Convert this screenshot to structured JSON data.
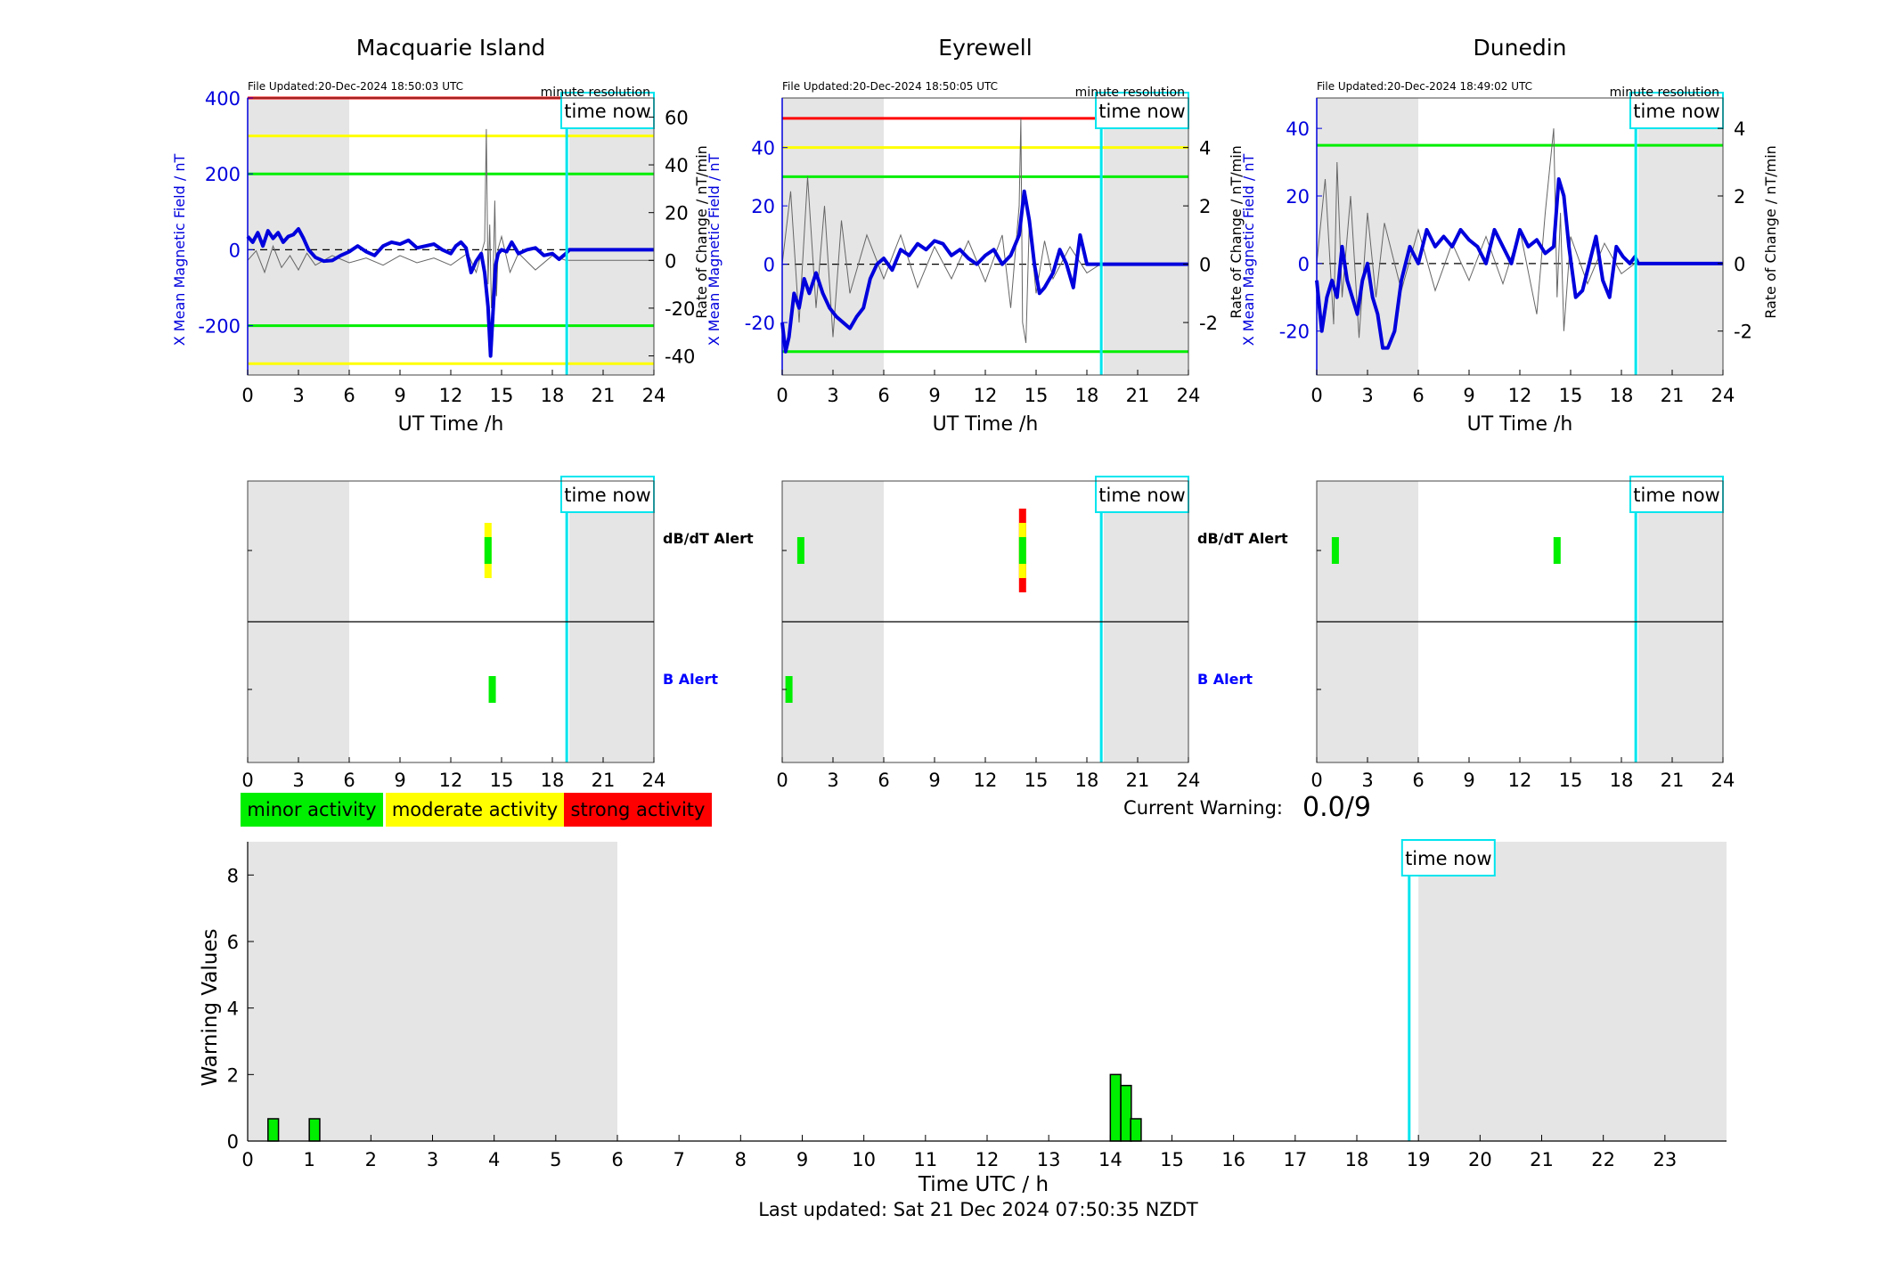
{
  "figure": {
    "last_updated": "Last updated: Sat 21 Dec 2024 07:50:35 NZDT",
    "current_warning_label": "Current Warning:",
    "current_warning_value": "0.0/9",
    "time_now_label": "time now",
    "legend": [
      {
        "label": "minor activity",
        "color": "#00ee00"
      },
      {
        "label": "moderate activity",
        "color": "#ffff00"
      },
      {
        "label": "strong activity",
        "color": "#ff0000"
      }
    ],
    "colors": {
      "field_line": "#0000dd",
      "rate_line": "#666666",
      "time_now": "#00e5ee",
      "night_shade": "#e5e5e5",
      "threshold_red": "#ff0000",
      "threshold_yellow": "#ffff00",
      "threshold_green": "#00ee00",
      "b_alert_label": "#0000ff"
    }
  },
  "chart_data": [
    {
      "type": "line",
      "title": "Macquarie Island",
      "file_updated": "File Updated:20-Dec-2024 18:50:03 UTC",
      "resolution": "minute resolution",
      "xlabel": "UT Time /h",
      "ylabel_left": "X Mean Magnetic Field / nT",
      "ylabel_right": "Rate of Change / nT/min",
      "xlim": [
        0,
        24
      ],
      "ylim": [
        -330,
        400
      ],
      "ylim_right": [
        -48,
        68
      ],
      "xticks": [
        0,
        3,
        6,
        9,
        12,
        15,
        18,
        21,
        24
      ],
      "yticks": [
        -200,
        0,
        200,
        400
      ],
      "yticks_right": [
        -40,
        -20,
        0,
        20,
        40,
        60
      ],
      "shaded_hours": [
        [
          0,
          6
        ],
        [
          19,
          24
        ]
      ],
      "time_now": 18.85,
      "thresholds": [
        {
          "value": 400,
          "color": "red"
        },
        {
          "value": 300,
          "color": "yellow"
        },
        {
          "value": 200,
          "color": "green"
        },
        {
          "value": -200,
          "color": "green"
        },
        {
          "value": -300,
          "color": "yellow"
        }
      ],
      "field_series": {
        "name": "X Mean Magnetic Field",
        "x": [
          0,
          0.3,
          0.6,
          0.9,
          1.2,
          1.5,
          1.8,
          2.1,
          2.4,
          2.7,
          3.0,
          3.3,
          3.6,
          4.0,
          4.5,
          5.0,
          5.5,
          6.0,
          6.5,
          7.0,
          7.5,
          8.0,
          8.5,
          9.0,
          9.5,
          10.0,
          10.5,
          11.0,
          11.5,
          12.0,
          12.3,
          12.6,
          12.9,
          13.2,
          13.5,
          13.8,
          14.0,
          14.2,
          14.35,
          14.5,
          14.65,
          14.8,
          15.0,
          15.3,
          15.6,
          16.0,
          16.5,
          17.0,
          17.5,
          18.0,
          18.4,
          18.8,
          19.0,
          24.0
        ],
        "y": [
          35,
          20,
          45,
          10,
          50,
          30,
          45,
          20,
          35,
          40,
          55,
          30,
          0,
          -20,
          -30,
          -28,
          -15,
          -5,
          10,
          -5,
          -15,
          10,
          20,
          15,
          25,
          5,
          10,
          15,
          0,
          -10,
          10,
          20,
          5,
          -60,
          -30,
          -10,
          -60,
          -150,
          -280,
          -160,
          -40,
          -10,
          0,
          -5,
          20,
          -10,
          0,
          5,
          -15,
          -10,
          -25,
          -10,
          0,
          0
        ]
      },
      "rate_series": {
        "name": "Rate of Change",
        "x": [
          0,
          0.5,
          1.0,
          1.5,
          2.0,
          2.5,
          3.0,
          3.5,
          4.0,
          5.0,
          6.0,
          7.0,
          8.0,
          9.0,
          10.0,
          11.0,
          12.0,
          13.0,
          13.5,
          14.0,
          14.1,
          14.2,
          14.3,
          14.4,
          14.5,
          14.6,
          14.7,
          14.8,
          15.0,
          15.5,
          16.0,
          17.0,
          18.0,
          18.8,
          24.0
        ],
        "y": [
          0,
          4,
          -5,
          6,
          -3,
          2,
          -4,
          3,
          -2,
          2,
          -1,
          1,
          -2,
          2,
          -1,
          1,
          -2,
          3,
          -5,
          8,
          55,
          -10,
          15,
          -20,
          -8,
          25,
          -15,
          5,
          10,
          -5,
          3,
          -4,
          2,
          0,
          0
        ]
      }
    },
    {
      "type": "line",
      "title": "Eyrewell",
      "file_updated": "File Updated:20-Dec-2024 18:50:05 UTC",
      "resolution": "minute resolution",
      "xlabel": "UT Time /h",
      "ylabel_left": "X Mean Magnetic Field / nT",
      "ylabel_right": "Rate of Change / nT/min",
      "xlim": [
        0,
        24
      ],
      "ylim": [
        -38,
        57
      ],
      "ylim_right": [
        -3.8,
        5.7
      ],
      "xticks": [
        0,
        3,
        6,
        9,
        12,
        15,
        18,
        21,
        24
      ],
      "yticks": [
        -20,
        0,
        20,
        40
      ],
      "yticks_right": [
        -2,
        0,
        2,
        4
      ],
      "shaded_hours": [
        [
          0,
          6
        ],
        [
          19,
          24
        ]
      ],
      "time_now": 18.85,
      "thresholds": [
        {
          "value": 50,
          "color": "red"
        },
        {
          "value": 40,
          "color": "yellow"
        },
        {
          "value": 30,
          "color": "green"
        },
        {
          "value": -30,
          "color": "green"
        }
      ],
      "field_series": {
        "name": "X Mean Magnetic Field",
        "x": [
          0,
          0.2,
          0.4,
          0.7,
          1.0,
          1.3,
          1.6,
          2.0,
          2.4,
          2.8,
          3.2,
          3.6,
          4.0,
          4.4,
          4.8,
          5.2,
          5.6,
          6.0,
          6.5,
          7.0,
          7.5,
          8.0,
          8.5,
          9.0,
          9.5,
          10.0,
          10.5,
          11.0,
          11.5,
          12.0,
          12.5,
          13.0,
          13.5,
          14.0,
          14.3,
          14.6,
          14.9,
          15.2,
          15.5,
          16.0,
          16.4,
          16.8,
          17.2,
          17.6,
          18.0,
          19.0,
          24.0
        ],
        "y": [
          -20,
          -30,
          -25,
          -10,
          -15,
          -5,
          -10,
          -3,
          -10,
          -15,
          -18,
          -20,
          -22,
          -18,
          -15,
          -5,
          0,
          2,
          -2,
          5,
          3,
          7,
          5,
          8,
          7,
          3,
          5,
          2,
          0,
          3,
          5,
          0,
          3,
          10,
          25,
          15,
          0,
          -10,
          -8,
          -3,
          5,
          0,
          -8,
          10,
          0,
          0,
          0
        ]
      },
      "rate_series": {
        "name": "Rate of Change",
        "x": [
          0,
          0.5,
          1.0,
          1.5,
          2.0,
          2.5,
          3.0,
          3.5,
          4.0,
          5.0,
          6.0,
          7.0,
          8.0,
          9.0,
          10.0,
          11.0,
          12.0,
          13.0,
          13.5,
          14.0,
          14.1,
          14.2,
          14.4,
          14.6,
          15.0,
          15.5,
          16.0,
          17.0,
          18.0,
          18.8,
          24.0
        ],
        "y": [
          0,
          2.5,
          -2.0,
          3.0,
          -1.5,
          2.0,
          -2.5,
          1.5,
          -1.0,
          1.0,
          -0.5,
          1.0,
          -0.8,
          0.6,
          -0.5,
          0.8,
          -0.6,
          1.0,
          -1.5,
          2.0,
          5.0,
          -2.0,
          -2.7,
          1.5,
          -1.0,
          0.8,
          -0.5,
          0.6,
          -0.3,
          0,
          0
        ]
      }
    },
    {
      "type": "line",
      "title": "Dunedin",
      "file_updated": "File Updated:20-Dec-2024 18:49:02 UTC",
      "resolution": "minute resolution",
      "xlabel": "UT Time /h",
      "ylabel_left": "X Mean Magnetic Field / nT",
      "ylabel_right": "Rate of Change / nT/min",
      "xlim": [
        0,
        24
      ],
      "ylim": [
        -33,
        49
      ],
      "ylim_right": [
        -3.3,
        4.9
      ],
      "xticks": [
        0,
        3,
        6,
        9,
        12,
        15,
        18,
        21,
        24
      ],
      "yticks": [
        -20,
        0,
        20,
        40
      ],
      "yticks_right": [
        -2,
        0,
        2,
        4
      ],
      "shaded_hours": [
        [
          0,
          6
        ],
        [
          19,
          24
        ]
      ],
      "time_now": 18.85,
      "thresholds": [
        {
          "value": 35,
          "color": "green"
        }
      ],
      "field_series": {
        "name": "X Mean Magnetic Field",
        "x": [
          0,
          0.3,
          0.6,
          0.9,
          1.2,
          1.5,
          1.8,
          2.1,
          2.4,
          2.7,
          3.0,
          3.3,
          3.6,
          3.9,
          4.2,
          4.6,
          5.0,
          5.5,
          6.0,
          6.5,
          7.0,
          7.5,
          8.0,
          8.5,
          9.0,
          9.5,
          10.0,
          10.5,
          11.0,
          11.5,
          12.0,
          12.5,
          13.0,
          13.5,
          14.0,
          14.3,
          14.6,
          14.9,
          15.3,
          15.7,
          16.1,
          16.5,
          16.9,
          17.3,
          17.7,
          18.1,
          18.5,
          18.8,
          19.0,
          24.0
        ],
        "y": [
          -5,
          -20,
          -10,
          -5,
          -10,
          5,
          -5,
          -10,
          -15,
          -5,
          0,
          -10,
          -15,
          -25,
          -25,
          -20,
          -5,
          5,
          0,
          10,
          5,
          8,
          5,
          10,
          7,
          5,
          0,
          10,
          5,
          0,
          10,
          5,
          7,
          3,
          5,
          25,
          20,
          5,
          -10,
          -8,
          0,
          8,
          -5,
          -10,
          5,
          2,
          0,
          2,
          0,
          0
        ]
      },
      "rate_series": {
        "name": "Rate of Change",
        "x": [
          0,
          0.5,
          1.0,
          1.2,
          1.5,
          2.0,
          2.5,
          3.0,
          3.5,
          4.0,
          5.0,
          6.0,
          7.0,
          8.0,
          9.0,
          10.0,
          11.0,
          12.0,
          13.0,
          13.5,
          14.0,
          14.2,
          14.4,
          14.6,
          15.0,
          16.0,
          17.0,
          18.0,
          18.8,
          24.0
        ],
        "y": [
          0,
          2.5,
          -1.8,
          3.0,
          -1.0,
          2.0,
          -2.2,
          1.5,
          -1.0,
          1.2,
          -0.8,
          1.0,
          -0.8,
          0.6,
          -0.5,
          0.8,
          -0.6,
          1.0,
          -1.5,
          1.5,
          4.0,
          -1.0,
          1.5,
          -2.0,
          0.8,
          -0.6,
          0.6,
          -0.3,
          0,
          0
        ]
      }
    },
    {
      "type": "alert_timeline",
      "station": "Macquarie Island",
      "row_labels": [
        "dB/dT Alert",
        "B Alert"
      ],
      "xlim": [
        0,
        24
      ],
      "xticks": [
        0,
        3,
        6,
        9,
        12,
        15,
        18,
        21,
        24
      ],
      "shaded_hours": [
        [
          0,
          6
        ],
        [
          19,
          24
        ]
      ],
      "time_now": 18.85,
      "alerts": [
        {
          "row": "dB/dT Alert",
          "hour": 14.2,
          "level": "moderate"
        },
        {
          "row": "dB/dT Alert",
          "hour": 14.2,
          "level": "minor"
        },
        {
          "row": "B Alert",
          "hour": 14.45,
          "level": "minor"
        }
      ]
    },
    {
      "type": "alert_timeline",
      "station": "Eyrewell",
      "row_labels": [
        "dB/dT Alert",
        "B Alert"
      ],
      "xlim": [
        0,
        24
      ],
      "xticks": [
        0,
        3,
        6,
        9,
        12,
        15,
        18,
        21,
        24
      ],
      "shaded_hours": [
        [
          0,
          6
        ],
        [
          19,
          24
        ]
      ],
      "time_now": 18.85,
      "alerts": [
        {
          "row": "dB/dT Alert",
          "hour": 1.1,
          "level": "minor"
        },
        {
          "row": "dB/dT Alert",
          "hour": 14.2,
          "level": "strong"
        },
        {
          "row": "dB/dT Alert",
          "hour": 14.2,
          "level": "moderate"
        },
        {
          "row": "dB/dT Alert",
          "hour": 14.2,
          "level": "minor"
        },
        {
          "row": "B Alert",
          "hour": 0.4,
          "level": "minor"
        }
      ]
    },
    {
      "type": "alert_timeline",
      "station": "Dunedin",
      "row_labels": [
        "dB/dT Alert",
        "B Alert"
      ],
      "xlim": [
        0,
        24
      ],
      "xticks": [
        0,
        3,
        6,
        9,
        12,
        15,
        18,
        21,
        24
      ],
      "shaded_hours": [
        [
          0,
          6
        ],
        [
          19,
          24
        ]
      ],
      "time_now": 18.85,
      "alerts": [
        {
          "row": "dB/dT Alert",
          "hour": 1.1,
          "level": "minor"
        },
        {
          "row": "dB/dT Alert",
          "hour": 14.2,
          "level": "minor"
        }
      ]
    },
    {
      "type": "bar",
      "xlabel": "Time UTC / h",
      "ylabel": "Warning Values",
      "xlim": [
        0,
        24
      ],
      "ylim": [
        0,
        9
      ],
      "xticks": [
        0,
        1,
        2,
        3,
        4,
        5,
        6,
        7,
        8,
        9,
        10,
        11,
        12,
        13,
        14,
        15,
        16,
        17,
        18,
        19,
        20,
        21,
        22,
        23
      ],
      "yticks": [
        0,
        2,
        4,
        6,
        8
      ],
      "shaded_hours": [
        [
          0,
          6
        ],
        [
          19,
          24
        ]
      ],
      "time_now": 18.85,
      "bar_width_hours": 0.17,
      "bars": [
        {
          "hour": 0.33,
          "value": 0.67
        },
        {
          "hour": 1.0,
          "value": 0.67
        },
        {
          "hour": 14.0,
          "value": 2.0
        },
        {
          "hour": 14.17,
          "value": 1.67
        },
        {
          "hour": 14.33,
          "value": 0.67
        }
      ]
    }
  ]
}
